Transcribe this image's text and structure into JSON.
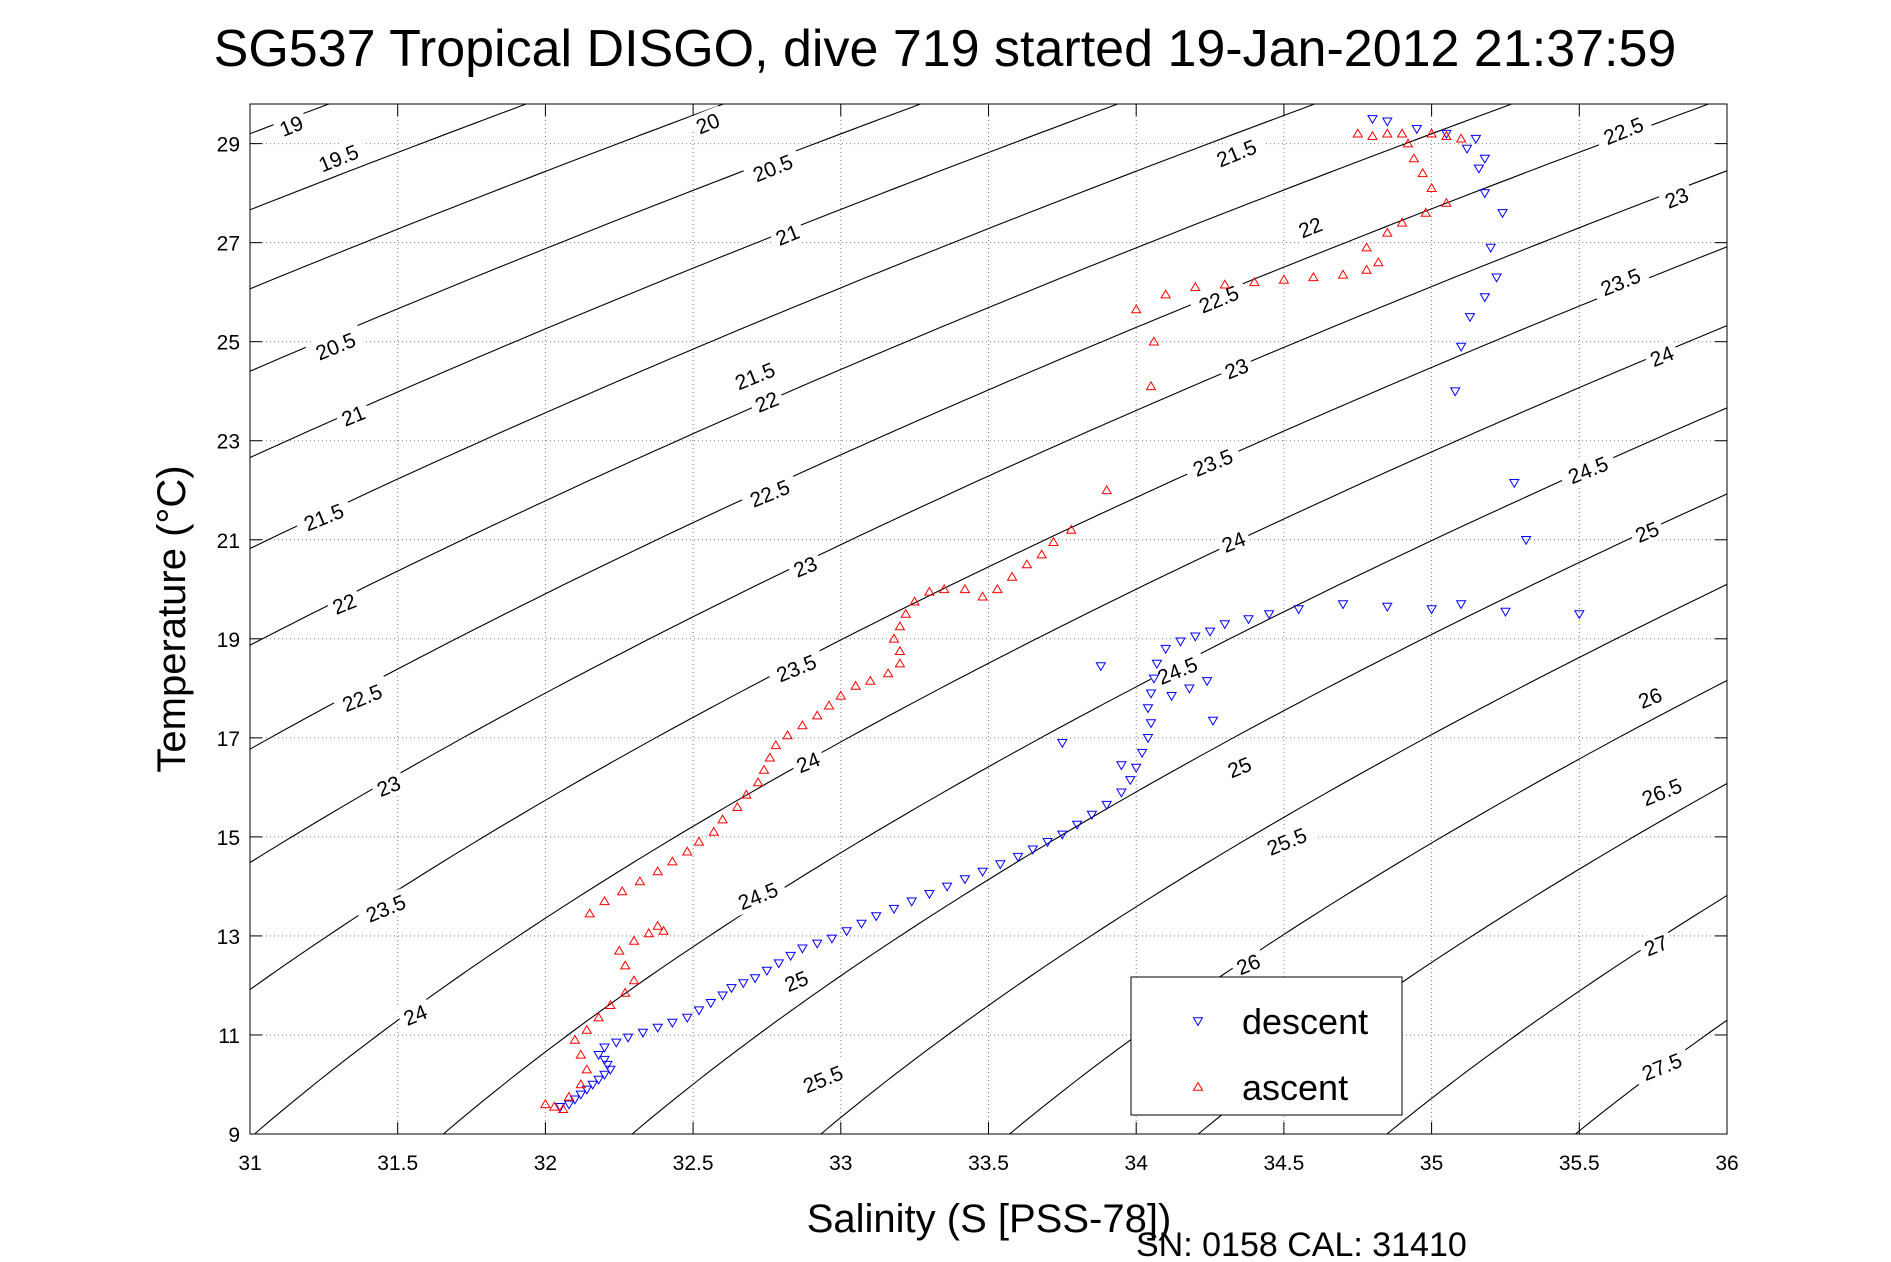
{
  "chart_data": {
    "type": "scatter",
    "title": "SG537 Tropical DISGO, dive 719 started 19-Jan-2012 21:37:59",
    "xlabel": "Salinity (S [PSS-78])",
    "ylabel": "Temperature (°C)",
    "xlim": [
      31,
      36
    ],
    "ylim": [
      9,
      29.8
    ],
    "xticks": [
      31,
      31.5,
      32,
      32.5,
      33,
      33.5,
      34,
      34.5,
      35,
      35.5,
      36
    ],
    "xtick_labels": [
      "31",
      "31.5",
      "32",
      "32.5",
      "33",
      "33.5",
      "34",
      "34.5",
      "35",
      "35.5",
      "36"
    ],
    "yticks": [
      9,
      11,
      13,
      15,
      17,
      19,
      21,
      23,
      25,
      27,
      29
    ],
    "ytick_labels": [
      "9",
      "11",
      "13",
      "15",
      "17",
      "19",
      "21",
      "23",
      "25",
      "27",
      "29"
    ],
    "grid": true,
    "legend_position": "bottom-right",
    "density_contours": {
      "levels": [
        19,
        19.5,
        20,
        20.5,
        21,
        21.5,
        22,
        22.5,
        23,
        23.5,
        24,
        24.5,
        25,
        25.5,
        26,
        26.5,
        27,
        27.5
      ],
      "labels": [
        {
          "text": "19",
          "s": 31.14,
          "t": 29.35
        },
        {
          "text": "19.5",
          "s": 31.3,
          "t": 28.7
        },
        {
          "text": "20",
          "s": 32.55,
          "t": 29.4
        },
        {
          "text": "20.5",
          "s": 32.77,
          "t": 28.5
        },
        {
          "text": "21",
          "s": 32.82,
          "t": 27.15
        },
        {
          "text": "21.5",
          "s": 34.34,
          "t": 28.8
        },
        {
          "text": "22",
          "s": 34.59,
          "t": 27.3
        },
        {
          "text": "22.5",
          "s": 35.65,
          "t": 29.25
        },
        {
          "text": "23",
          "s": 35.83,
          "t": 27.9
        },
        {
          "text": "23.5",
          "s": 35.64,
          "t": 26.2
        },
        {
          "text": "24",
          "s": 35.78,
          "t": 24.7
        },
        {
          "text": "20.5",
          "s": 31.29,
          "t": 24.9
        },
        {
          "text": "21",
          "s": 31.35,
          "t": 23.5
        },
        {
          "text": "21.5",
          "s": 31.25,
          "t": 21.45
        },
        {
          "text": "22",
          "s": 31.32,
          "t": 19.7
        },
        {
          "text": "22.5",
          "s": 31.38,
          "t": 17.8
        },
        {
          "text": "23",
          "s": 31.47,
          "t": 16.02
        },
        {
          "text": "23.5",
          "s": 31.46,
          "t": 13.55
        },
        {
          "text": "24",
          "s": 31.56,
          "t": 11.4
        },
        {
          "text": "21.5",
          "s": 32.71,
          "t": 24.3
        },
        {
          "text": "22",
          "s": 32.75,
          "t": 23.78
        },
        {
          "text": "22.5",
          "s": 32.76,
          "t": 21.93
        },
        {
          "text": "23",
          "s": 32.88,
          "t": 20.45
        },
        {
          "text": "23.5",
          "s": 32.85,
          "t": 18.4
        },
        {
          "text": "24",
          "s": 32.89,
          "t": 16.5
        },
        {
          "text": "24.5",
          "s": 32.72,
          "t": 13.8
        },
        {
          "text": "25",
          "s": 32.85,
          "t": 12.08
        },
        {
          "text": "25.5",
          "s": 32.94,
          "t": 10.1
        },
        {
          "text": "22.5",
          "s": 34.28,
          "t": 25.85
        },
        {
          "text": "23",
          "s": 34.34,
          "t": 24.45
        },
        {
          "text": "23.5",
          "s": 34.26,
          "t": 22.55
        },
        {
          "text": "24",
          "s": 34.33,
          "t": 20.95
        },
        {
          "text": "24.5",
          "s": 34.14,
          "t": 18.35
        },
        {
          "text": "25",
          "s": 34.35,
          "t": 16.4
        },
        {
          "text": "25.5",
          "s": 34.51,
          "t": 14.9
        },
        {
          "text": "26",
          "s": 34.38,
          "t": 12.42
        },
        {
          "text": "24.5",
          "s": 35.53,
          "t": 22.4
        },
        {
          "text": "25",
          "s": 35.73,
          "t": 21.15
        },
        {
          "text": "26",
          "s": 35.74,
          "t": 17.8
        },
        {
          "text": "26.5",
          "s": 35.78,
          "t": 15.9
        },
        {
          "text": "27",
          "s": 35.76,
          "t": 12.8
        },
        {
          "text": "27.5",
          "s": 35.78,
          "t": 10.35
        }
      ]
    },
    "series": [
      {
        "name": "descent",
        "color": "#0000ff",
        "marker": "triangle-down",
        "points": [
          [
            32.05,
            9.55
          ],
          [
            32.08,
            9.6
          ],
          [
            32.1,
            9.7
          ],
          [
            32.12,
            9.8
          ],
          [
            32.14,
            9.9
          ],
          [
            32.16,
            10.0
          ],
          [
            32.18,
            10.1
          ],
          [
            32.2,
            10.2
          ],
          [
            32.22,
            10.3
          ],
          [
            32.21,
            10.4
          ],
          [
            32.2,
            10.5
          ],
          [
            32.18,
            10.6
          ],
          [
            32.2,
            10.75
          ],
          [
            32.24,
            10.85
          ],
          [
            32.28,
            10.95
          ],
          [
            32.33,
            11.05
          ],
          [
            32.38,
            11.15
          ],
          [
            32.43,
            11.25
          ],
          [
            32.48,
            11.35
          ],
          [
            32.52,
            11.5
          ],
          [
            32.56,
            11.65
          ],
          [
            32.6,
            11.8
          ],
          [
            32.63,
            11.95
          ],
          [
            32.67,
            12.05
          ],
          [
            32.71,
            12.15
          ],
          [
            32.75,
            12.3
          ],
          [
            32.79,
            12.45
          ],
          [
            32.83,
            12.6
          ],
          [
            32.87,
            12.75
          ],
          [
            32.92,
            12.85
          ],
          [
            32.97,
            12.95
          ],
          [
            33.02,
            13.1
          ],
          [
            33.07,
            13.25
          ],
          [
            33.12,
            13.4
          ],
          [
            33.18,
            13.55
          ],
          [
            33.24,
            13.7
          ],
          [
            33.3,
            13.85
          ],
          [
            33.36,
            14.0
          ],
          [
            33.42,
            14.15
          ],
          [
            33.48,
            14.3
          ],
          [
            33.54,
            14.45
          ],
          [
            33.6,
            14.6
          ],
          [
            33.65,
            14.75
          ],
          [
            33.7,
            14.9
          ],
          [
            33.75,
            15.05
          ],
          [
            33.8,
            15.25
          ],
          [
            33.85,
            15.45
          ],
          [
            33.9,
            15.65
          ],
          [
            33.95,
            15.9
          ],
          [
            33.98,
            16.15
          ],
          [
            34.0,
            16.4
          ],
          [
            34.02,
            16.7
          ],
          [
            34.04,
            17.0
          ],
          [
            34.05,
            17.3
          ],
          [
            34.04,
            17.6
          ],
          [
            34.05,
            17.9
          ],
          [
            34.06,
            18.2
          ],
          [
            34.07,
            18.5
          ],
          [
            34.1,
            18.8
          ],
          [
            34.15,
            18.95
          ],
          [
            34.2,
            19.05
          ],
          [
            34.25,
            19.15
          ],
          [
            34.3,
            19.3
          ],
          [
            34.38,
            19.4
          ],
          [
            34.45,
            19.5
          ],
          [
            34.55,
            19.6
          ],
          [
            34.7,
            19.7
          ],
          [
            34.85,
            19.65
          ],
          [
            35.0,
            19.6
          ],
          [
            35.1,
            19.7
          ],
          [
            35.25,
            19.55
          ],
          [
            35.5,
            19.5
          ],
          [
            34.12,
            17.85
          ],
          [
            34.18,
            18.0
          ],
          [
            34.24,
            18.15
          ],
          [
            33.88,
            18.45
          ],
          [
            33.75,
            16.9
          ],
          [
            33.95,
            16.45
          ],
          [
            34.26,
            17.35
          ],
          [
            35.32,
            21.0
          ],
          [
            35.28,
            22.15
          ],
          [
            35.08,
            24.0
          ],
          [
            35.1,
            24.9
          ],
          [
            35.13,
            25.5
          ],
          [
            35.18,
            25.9
          ],
          [
            35.22,
            26.3
          ],
          [
            35.2,
            26.9
          ],
          [
            35.24,
            27.6
          ],
          [
            35.18,
            28.0
          ],
          [
            35.16,
            28.5
          ],
          [
            35.12,
            28.9
          ],
          [
            35.05,
            29.2
          ],
          [
            34.95,
            29.3
          ],
          [
            34.85,
            29.45
          ],
          [
            34.8,
            29.5
          ],
          [
            35.15,
            29.1
          ],
          [
            35.18,
            28.7
          ]
        ]
      },
      {
        "name": "ascent",
        "color": "#ff0000",
        "marker": "triangle-up",
        "points": [
          [
            32.0,
            9.6
          ],
          [
            32.03,
            9.55
          ],
          [
            32.06,
            9.5
          ],
          [
            32.08,
            9.75
          ],
          [
            32.12,
            10.0
          ],
          [
            32.14,
            10.3
          ],
          [
            32.12,
            10.6
          ],
          [
            32.1,
            10.9
          ],
          [
            32.14,
            11.1
          ],
          [
            32.18,
            11.35
          ],
          [
            32.22,
            11.6
          ],
          [
            32.27,
            11.85
          ],
          [
            32.3,
            12.1
          ],
          [
            32.27,
            12.4
          ],
          [
            32.25,
            12.7
          ],
          [
            32.3,
            12.9
          ],
          [
            32.35,
            13.05
          ],
          [
            32.4,
            13.1
          ],
          [
            32.38,
            13.2
          ],
          [
            32.15,
            13.45
          ],
          [
            32.2,
            13.7
          ],
          [
            32.26,
            13.9
          ],
          [
            32.32,
            14.1
          ],
          [
            32.38,
            14.3
          ],
          [
            32.43,
            14.5
          ],
          [
            32.48,
            14.7
          ],
          [
            32.52,
            14.9
          ],
          [
            32.57,
            15.1
          ],
          [
            32.6,
            15.35
          ],
          [
            32.65,
            15.6
          ],
          [
            32.68,
            15.85
          ],
          [
            32.72,
            16.1
          ],
          [
            32.74,
            16.35
          ],
          [
            32.76,
            16.6
          ],
          [
            32.78,
            16.85
          ],
          [
            32.82,
            17.05
          ],
          [
            32.87,
            17.25
          ],
          [
            32.92,
            17.45
          ],
          [
            32.96,
            17.65
          ],
          [
            33.0,
            17.85
          ],
          [
            33.05,
            18.05
          ],
          [
            33.1,
            18.15
          ],
          [
            33.16,
            18.3
          ],
          [
            33.2,
            18.5
          ],
          [
            33.2,
            18.75
          ],
          [
            33.18,
            19.0
          ],
          [
            33.2,
            19.25
          ],
          [
            33.22,
            19.5
          ],
          [
            33.25,
            19.75
          ],
          [
            33.3,
            19.95
          ],
          [
            33.35,
            20.0
          ],
          [
            33.42,
            20.0
          ],
          [
            33.48,
            19.85
          ],
          [
            33.53,
            20.0
          ],
          [
            33.58,
            20.25
          ],
          [
            33.63,
            20.5
          ],
          [
            33.68,
            20.7
          ],
          [
            33.72,
            20.95
          ],
          [
            33.78,
            21.2
          ],
          [
            33.9,
            22.0
          ],
          [
            34.0,
            25.65
          ],
          [
            34.06,
            25.0
          ],
          [
            34.05,
            24.1
          ],
          [
            34.1,
            25.95
          ],
          [
            34.2,
            26.1
          ],
          [
            34.3,
            26.15
          ],
          [
            34.4,
            26.2
          ],
          [
            34.5,
            26.25
          ],
          [
            34.6,
            26.3
          ],
          [
            34.7,
            26.35
          ],
          [
            34.78,
            26.45
          ],
          [
            34.82,
            26.6
          ],
          [
            34.78,
            26.9
          ],
          [
            34.85,
            27.2
          ],
          [
            34.9,
            27.4
          ],
          [
            34.98,
            27.6
          ],
          [
            35.05,
            27.8
          ],
          [
            35.0,
            28.1
          ],
          [
            34.97,
            28.4
          ],
          [
            34.94,
            28.7
          ],
          [
            34.92,
            29.0
          ],
          [
            34.85,
            29.2
          ],
          [
            34.75,
            29.2
          ],
          [
            34.8,
            29.15
          ],
          [
            34.9,
            29.2
          ],
          [
            35.0,
            29.2
          ],
          [
            35.05,
            29.15
          ],
          [
            35.1,
            29.1
          ]
        ]
      }
    ]
  },
  "footer": {
    "serial_text": "SN: 0158  CAL: 31410"
  }
}
